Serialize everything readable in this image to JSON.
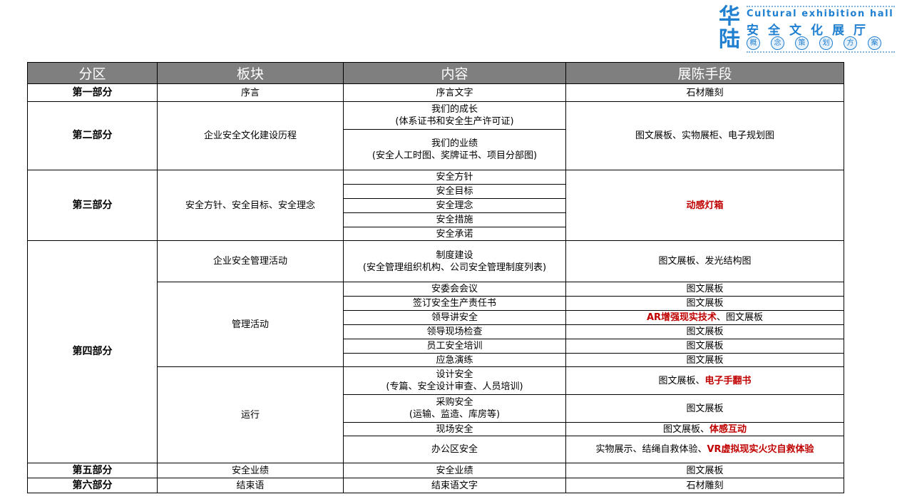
{
  "logo": {
    "big": "华陆",
    "en": "Cultural exhibition hall",
    "cn": "安全文化展厅",
    "circles": [
      "概",
      "念",
      "策",
      "划",
      "方",
      "案"
    ]
  },
  "headers": [
    "分区",
    "板块",
    "内容",
    "展陈手段"
  ],
  "colors": {
    "header_bg": "#7f7f7f",
    "highlight": "#c00000",
    "logo": "#1f7fd0"
  },
  "rows": [
    [
      {
        "t": "第一部分",
        "b": true
      },
      {
        "t": "序言"
      },
      {
        "t": "序言文字"
      },
      {
        "p": [
          [
            "石材雕刻",
            0
          ]
        ]
      }
    ],
    [
      {
        "t": "第二部分",
        "b": true,
        "rs": 2
      },
      {
        "t": "企业安全文化建设历程",
        "rs": 2
      },
      {
        "t": "我们的成长\n(体系证书和安全生产许可证)"
      },
      {
        "p": [
          [
            "图文展板、实物展柜、电子规划图",
            0
          ]
        ],
        "rs": 2
      }
    ],
    [
      {
        "t": "我们的业绩\n(安全人工时图、奖牌证书、项目分部图)"
      }
    ],
    [
      {
        "t": "第三部分",
        "b": true,
        "rs": 5
      },
      {
        "t": "安全方针、安全目标、安全理念",
        "rs": 5
      },
      {
        "t": "安全方针"
      },
      {
        "p": [
          [
            "动感灯箱",
            1
          ]
        ],
        "rs": 5
      }
    ],
    [
      {
        "t": "安全目标"
      }
    ],
    [
      {
        "t": "安全理念"
      }
    ],
    [
      {
        "t": "安全措施"
      }
    ],
    [
      {
        "t": "安全承诺"
      }
    ],
    [
      {
        "t": "第四部分",
        "b": true,
        "rs": 11
      },
      {
        "t": "企业安全管理活动"
      },
      {
        "t": "制度建设\n(安全管理组织机构、公司安全管理制度列表)"
      },
      {
        "p": [
          [
            "图文展板、发光结构图",
            0
          ]
        ]
      }
    ],
    [
      {
        "t": "管理活动",
        "rs": 6
      },
      {
        "t": "安委会会议"
      },
      {
        "p": [
          [
            "图文展板",
            0
          ]
        ]
      }
    ],
    [
      {
        "t": "签订安全生产责任书"
      },
      {
        "p": [
          [
            "图文展板",
            0
          ]
        ]
      }
    ],
    [
      {
        "t": "领导讲安全"
      },
      {
        "p": [
          [
            "AR增强现实技术",
            1
          ],
          [
            "、图文展板",
            0
          ]
        ]
      }
    ],
    [
      {
        "t": "领导现场检查"
      },
      {
        "p": [
          [
            "图文展板",
            0
          ]
        ]
      }
    ],
    [
      {
        "t": "员工安全培训"
      },
      {
        "p": [
          [
            "图文展板",
            0
          ]
        ]
      }
    ],
    [
      {
        "t": "应急演练"
      },
      {
        "p": [
          [
            "图文展板",
            0
          ]
        ]
      }
    ],
    [
      {
        "t": "运行",
        "rs": 4
      },
      {
        "t": "设计安全\n(专篇、安全设计审查、人员培训)"
      },
      {
        "p": [
          [
            "图文展板、",
            0
          ],
          [
            "电子手翻书",
            1
          ]
        ]
      }
    ],
    [
      {
        "t": "采购安全\n(运输、监造、库房等)"
      },
      {
        "p": [
          [
            "图文展板",
            0
          ]
        ]
      }
    ],
    [
      {
        "t": "现场安全"
      },
      {
        "p": [
          [
            "图文展板、",
            0
          ],
          [
            "体感互动",
            1
          ]
        ]
      }
    ],
    [
      {
        "t": "办公区安全"
      },
      {
        "p": [
          [
            "实物展示、结绳自救体验、",
            0
          ],
          [
            "VR虚拟现实火灾自救体验",
            1
          ]
        ]
      }
    ],
    [
      {
        "t": "第五部分",
        "b": true
      },
      {
        "t": "安全业绩"
      },
      {
        "t": "安全业绩"
      },
      {
        "p": [
          [
            "图文展板",
            0
          ]
        ]
      }
    ],
    [
      {
        "t": "第六部分",
        "b": true
      },
      {
        "t": "结束语"
      },
      {
        "t": "结束语文字"
      },
      {
        "p": [
          [
            "石材雕刻",
            0
          ]
        ]
      }
    ]
  ]
}
